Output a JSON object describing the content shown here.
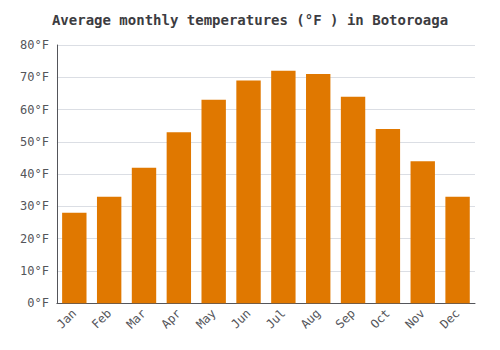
{
  "chart_data": {
    "type": "bar",
    "title": "Average monthly temperatures (°F ) in Botoroaga",
    "categories": [
      "Jan",
      "Feb",
      "Mar",
      "Apr",
      "May",
      "Jun",
      "Jul",
      "Aug",
      "Sep",
      "Oct",
      "Nov",
      "Dec"
    ],
    "values": [
      28,
      33,
      42,
      53,
      63,
      69,
      72,
      71,
      64,
      54,
      44,
      33
    ],
    "color": "#E07800",
    "ylim": [
      0,
      80
    ],
    "yticks": [
      {
        "value": 0,
        "label": "0°F"
      },
      {
        "value": 10,
        "label": "10°F"
      },
      {
        "value": 20,
        "label": "20°F"
      },
      {
        "value": 30,
        "label": "30°F"
      },
      {
        "value": 40,
        "label": "40°F"
      },
      {
        "value": 50,
        "label": "50°F"
      },
      {
        "value": 60,
        "label": "60°F"
      },
      {
        "value": 70,
        "label": "70°F"
      },
      {
        "value": 80,
        "label": "80°F"
      }
    ],
    "grid": true
  }
}
